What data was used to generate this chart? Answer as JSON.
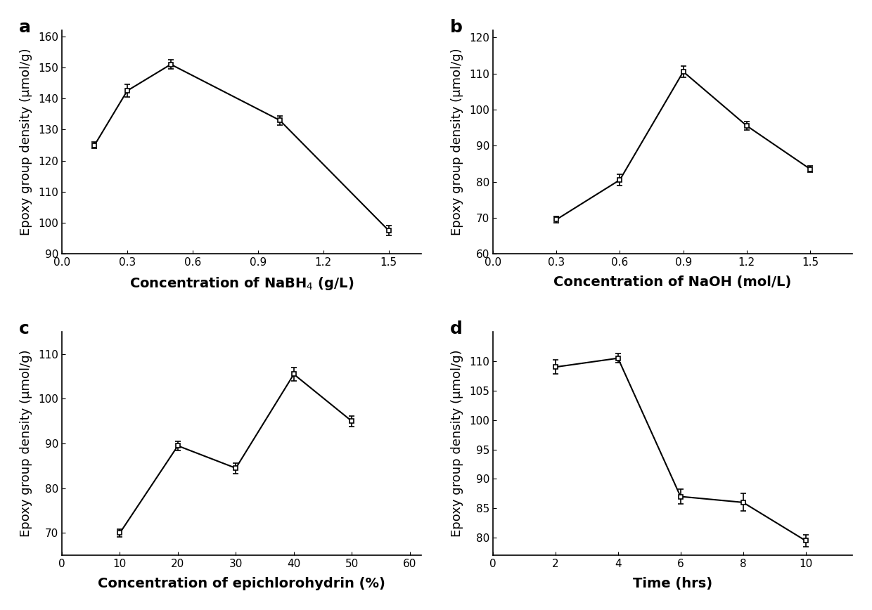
{
  "panel_a": {
    "x": [
      0.15,
      0.3,
      0.5,
      1.0,
      1.5
    ],
    "y": [
      125.0,
      142.5,
      151.0,
      133.0,
      97.5
    ],
    "yerr": [
      1.0,
      2.0,
      1.5,
      1.5,
      1.5
    ],
    "xlabel": "Concentration of NaBH$_4$ (g/L)",
    "ylabel": "Epoxy group density (μmol/g)",
    "xlim": [
      0.0,
      1.65
    ],
    "ylim": [
      90,
      162
    ],
    "xticks": [
      0.0,
      0.3,
      0.6,
      0.9,
      1.2,
      1.5
    ],
    "yticks": [
      90,
      100,
      110,
      120,
      130,
      140,
      150,
      160
    ],
    "label": "a"
  },
  "panel_b": {
    "x": [
      0.3,
      0.6,
      0.9,
      1.2,
      1.5
    ],
    "y": [
      69.5,
      80.5,
      110.5,
      95.5,
      83.5
    ],
    "yerr": [
      0.8,
      1.5,
      1.5,
      1.2,
      0.8
    ],
    "xlabel": "Concentration of NaOH (mol/L)",
    "ylabel": "Epoxy group density (μmol/g)",
    "xlim": [
      0.0,
      1.7
    ],
    "ylim": [
      60,
      122
    ],
    "xticks": [
      0.0,
      0.3,
      0.6,
      0.9,
      1.2,
      1.5
    ],
    "yticks": [
      60,
      70,
      80,
      90,
      100,
      110,
      120
    ],
    "label": "b"
  },
  "panel_c": {
    "x": [
      10,
      20,
      30,
      40,
      50
    ],
    "y": [
      70.0,
      89.5,
      84.5,
      105.5,
      95.0
    ],
    "yerr": [
      0.8,
      1.0,
      1.2,
      1.5,
      1.2
    ],
    "xlabel": "Concentration of epichlorohydrin (%)",
    "ylabel": "Epoxy group density (μmol/g)",
    "xlim": [
      0,
      62
    ],
    "ylim": [
      65,
      115
    ],
    "xticks": [
      0,
      10,
      20,
      30,
      40,
      50,
      60
    ],
    "yticks": [
      70,
      80,
      90,
      100,
      110
    ],
    "label": "c"
  },
  "panel_d": {
    "x": [
      2,
      4,
      6,
      8,
      10
    ],
    "y": [
      109.0,
      110.5,
      87.0,
      86.0,
      79.5
    ],
    "yerr": [
      1.2,
      0.8,
      1.2,
      1.5,
      1.0
    ],
    "xlabel": "Time (hrs)",
    "ylabel": "Epoxy group density (μmol/g)",
    "xlim": [
      0,
      11.5
    ],
    "ylim": [
      77,
      115
    ],
    "xticks": [
      0,
      2,
      4,
      6,
      8,
      10
    ],
    "yticks": [
      80,
      85,
      90,
      95,
      100,
      105,
      110
    ],
    "label": "d"
  },
  "line_color": "#000000",
  "marker": "s",
  "markersize": 5,
  "linewidth": 1.5,
  "capsize": 3,
  "elinewidth": 1.2,
  "label_fontsize": 14,
  "tick_fontsize": 11,
  "panel_label_fontsize": 18
}
